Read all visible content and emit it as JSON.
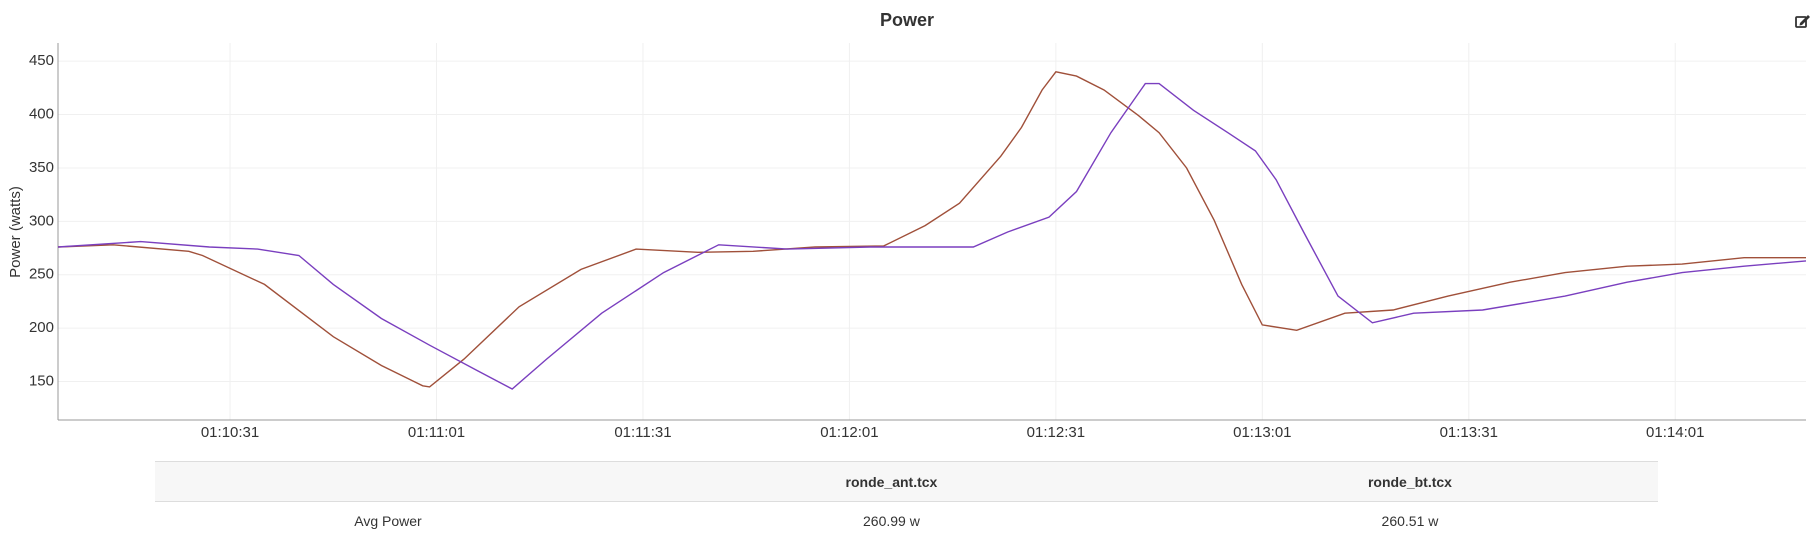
{
  "chart_data": {
    "type": "line",
    "title": "Power",
    "y_label": "Power (watts)",
    "ylim": [
      114,
      467
    ],
    "yticks": [
      150,
      200,
      250,
      300,
      350,
      400,
      450
    ],
    "xlim": [
      "01:10:06",
      "01:14:20"
    ],
    "xticks": [
      "01:10:31",
      "01:11:01",
      "01:11:31",
      "01:12:01",
      "01:12:31",
      "01:13:01",
      "01:13:31",
      "01:14:01"
    ],
    "grid": true,
    "series": [
      {
        "color": "#a0503a",
        "x": [
          "01:10:06",
          "01:10:14",
          "01:10:25",
          "01:10:27",
          "01:10:36",
          "01:10:46",
          "01:10:53",
          "01:10:59",
          "01:11:00",
          "01:11:05",
          "01:11:13",
          "01:11:22",
          "01:11:30",
          "01:11:39",
          "01:11:47",
          "01:11:56",
          "01:12:06",
          "01:12:12",
          "01:12:17",
          "01:12:23",
          "01:12:26",
          "01:12:29",
          "01:12:31",
          "01:12:34",
          "01:12:38",
          "01:12:43",
          "01:12:46",
          "01:12:50",
          "01:12:54",
          "01:12:58",
          "01:13:01",
          "01:13:06",
          "01:13:13",
          "01:13:20",
          "01:13:28",
          "01:13:37",
          "01:13:45",
          "01:13:54",
          "01:14:02",
          "01:14:11",
          "01:14:20"
        ],
        "values": [
          276,
          278,
          272,
          268,
          241,
          192,
          165,
          146,
          145,
          171,
          220,
          255,
          274,
          271,
          272,
          276,
          277,
          296,
          317,
          361,
          388,
          423,
          440,
          436,
          423,
          399,
          383,
          350,
          301,
          241,
          203,
          198,
          214,
          217,
          230,
          243,
          252,
          258,
          260,
          266,
          266
        ]
      },
      {
        "color": "#7a3fbf",
        "x": [
          "01:10:06",
          "01:10:18",
          "01:10:28",
          "01:10:35",
          "01:10:41",
          "01:10:46",
          "01:10:53",
          "01:11:00",
          "01:11:07",
          "01:11:12",
          "01:11:17",
          "01:11:25",
          "01:11:34",
          "01:11:42",
          "01:11:52",
          "01:12:04",
          "01:12:19",
          "01:12:24",
          "01:12:30",
          "01:12:34",
          "01:12:39",
          "01:12:44",
          "01:12:46",
          "01:12:51",
          "01:12:56",
          "01:13:00",
          "01:13:03",
          "01:13:07",
          "01:13:12",
          "01:13:17",
          "01:13:23",
          "01:13:33",
          "01:13:45",
          "01:13:54",
          "01:14:02",
          "01:14:11",
          "01:14:20"
        ],
        "values": [
          276,
          281,
          276,
          274,
          268,
          241,
          209,
          184,
          160,
          143,
          171,
          214,
          252,
          278,
          274,
          276,
          276,
          290,
          304,
          328,
          383,
          429,
          429,
          404,
          383,
          366,
          339,
          290,
          230,
          205,
          214,
          217,
          230,
          243,
          252,
          258,
          263
        ]
      }
    ]
  },
  "table": {
    "header": [
      "ronde_ant.tcx",
      "ronde_bt.tcx"
    ],
    "rows": [
      [
        "Avg Power",
        "260.99 w",
        "260.51 w"
      ]
    ]
  }
}
